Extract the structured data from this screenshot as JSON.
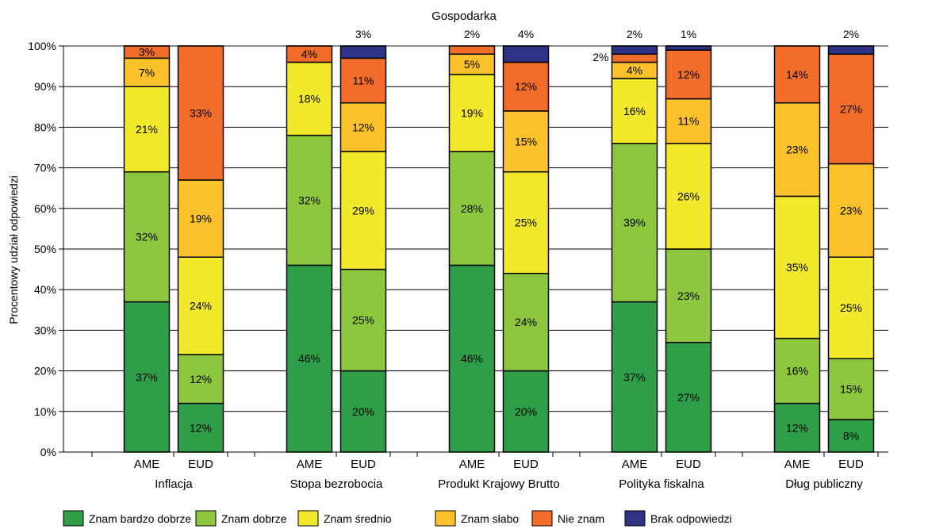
{
  "chart_data": {
    "type": "bar",
    "stacked": true,
    "title": "Gospodarka",
    "ylabel": "Procentowy udział odpowiedzi",
    "xlabel": "",
    "ylim": [
      0,
      100
    ],
    "y_ticks": [
      0,
      10,
      20,
      30,
      40,
      50,
      60,
      70,
      80,
      90,
      100
    ],
    "y_tick_labels": [
      "0%",
      "10%",
      "20%",
      "30%",
      "40%",
      "50%",
      "60%",
      "70%",
      "80%",
      "90%",
      "100%"
    ],
    "grid": true,
    "legend_position": "bottom",
    "groups": [
      "Inflacja",
      "Stopa bezrobocia",
      "Produkt Krajowy Brutto",
      "Polityka fiskalna",
      "Dług publiczny"
    ],
    "sublabels": [
      "AME",
      "EUD"
    ],
    "series": [
      {
        "name": "Znam bardzo dobrze",
        "color": "#2e9e48",
        "values": [
          [
            37,
            12
          ],
          [
            46,
            20
          ],
          [
            46,
            20
          ],
          [
            37,
            27
          ],
          [
            12,
            8
          ]
        ]
      },
      {
        "name": "Znam dobrze",
        "color": "#8dc63f",
        "values": [
          [
            32,
            12
          ],
          [
            32,
            25
          ],
          [
            28,
            24
          ],
          [
            39,
            23
          ],
          [
            16,
            15
          ]
        ]
      },
      {
        "name": "Znam średnio",
        "color": "#f2e82c",
        "values": [
          [
            21,
            24
          ],
          [
            18,
            29
          ],
          [
            19,
            25
          ],
          [
            16,
            26
          ],
          [
            35,
            25
          ]
        ]
      },
      {
        "name": "Znam słabo",
        "color": "#fbc22c",
        "values": [
          [
            7,
            19
          ],
          [
            0,
            12
          ],
          [
            5,
            15
          ],
          [
            4,
            11
          ],
          [
            23,
            23
          ]
        ]
      },
      {
        "name": "Nie znam",
        "color": "#f26d2a",
        "values": [
          [
            3,
            33
          ],
          [
            4,
            11
          ],
          [
            2,
            12
          ],
          [
            2,
            12
          ],
          [
            14,
            27
          ]
        ]
      },
      {
        "name": "Brak odpowiedzi",
        "color": "#2e3386",
        "values": [
          [
            0,
            0
          ],
          [
            0,
            3
          ],
          [
            0,
            4
          ],
          [
            2,
            1
          ],
          [
            0,
            2
          ]
        ]
      }
    ]
  }
}
